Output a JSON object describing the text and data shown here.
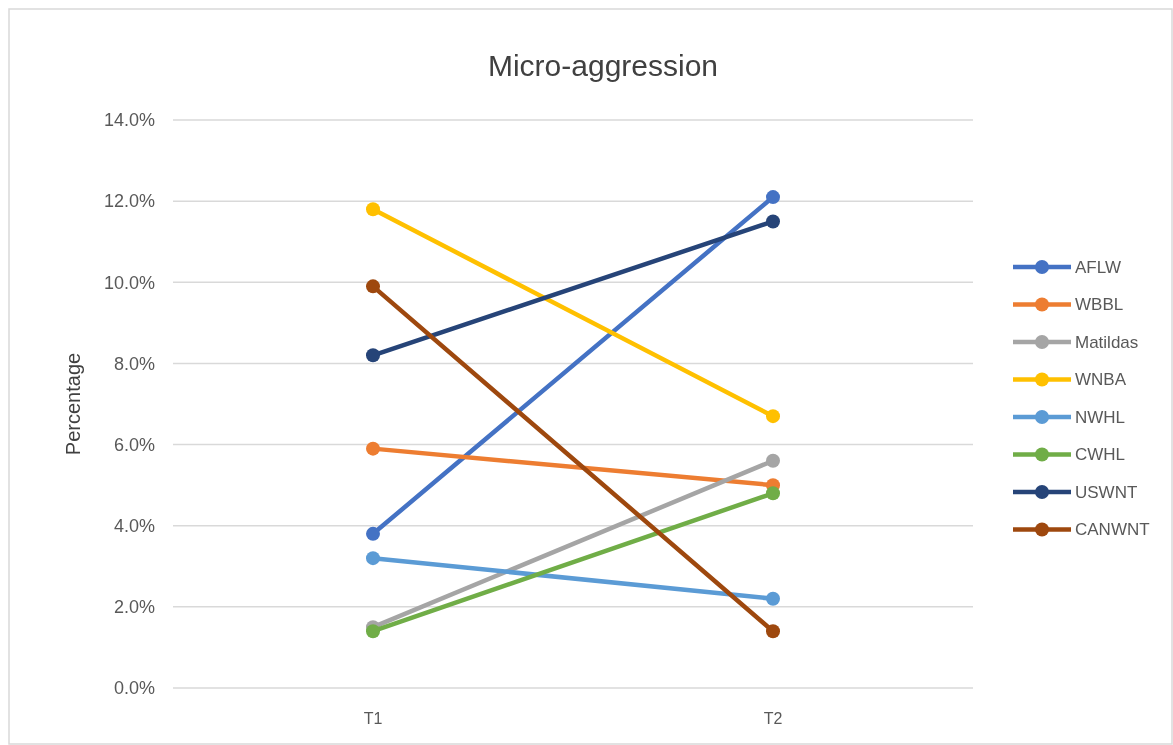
{
  "chart_data": {
    "type": "line",
    "title": "Micro-aggression",
    "ylabel": "Percentage",
    "categories": [
      "T1",
      "T2"
    ],
    "series": [
      {
        "name": "AFLW",
        "color": "#4472c4",
        "values": [
          3.8,
          12.1
        ]
      },
      {
        "name": "WBBL",
        "color": "#ed7d31",
        "values": [
          5.9,
          5.0
        ]
      },
      {
        "name": "Matildas",
        "color": "#a5a5a5",
        "values": [
          1.5,
          5.6
        ]
      },
      {
        "name": "WNBA",
        "color": "#ffc000",
        "values": [
          11.8,
          6.7
        ]
      },
      {
        "name": "NWHL",
        "color": "#5b9bd5",
        "values": [
          3.2,
          2.2
        ]
      },
      {
        "name": "CWHL",
        "color": "#70ad47",
        "values": [
          1.4,
          4.8
        ]
      },
      {
        "name": "USWNT",
        "color": "#264478",
        "values": [
          8.2,
          11.5
        ]
      },
      {
        "name": "CANWNT",
        "color": "#9e480e",
        "values": [
          9.9,
          1.4
        ]
      }
    ],
    "ylim": [
      0,
      14
    ],
    "yticks": [
      {
        "value": 0,
        "label": "0.0%"
      },
      {
        "value": 2,
        "label": "2.0%"
      },
      {
        "value": 4,
        "label": "4.0%"
      },
      {
        "value": 6,
        "label": "6.0%"
      },
      {
        "value": 8,
        "label": "8.0%"
      },
      {
        "value": 10,
        "label": "10.0%"
      },
      {
        "value": 12,
        "label": "12.0%"
      },
      {
        "value": 14,
        "label": "14.0%"
      }
    ],
    "grid": "y",
    "legend": "right",
    "marker": "circle",
    "line_style": "solid"
  }
}
